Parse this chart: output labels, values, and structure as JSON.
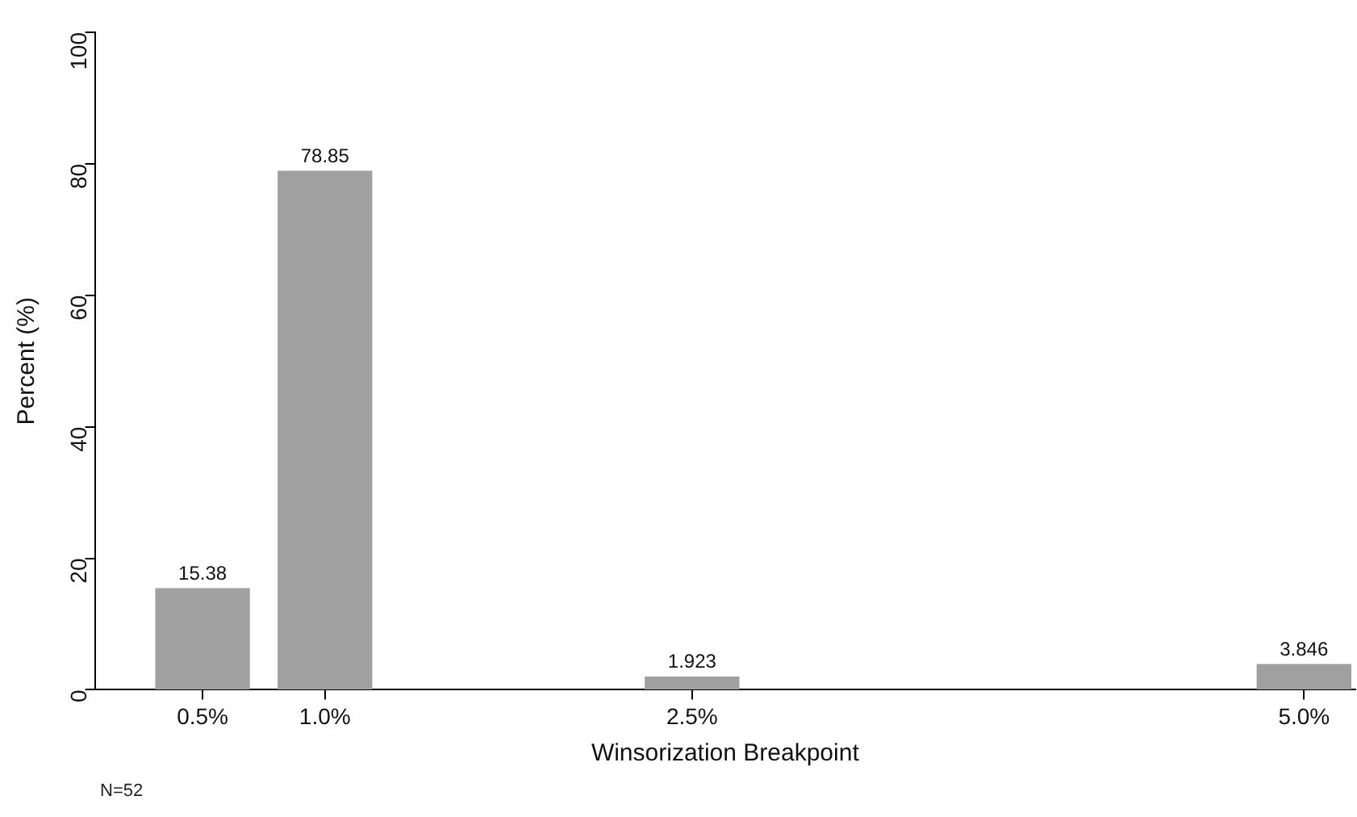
{
  "chart_data": {
    "type": "bar",
    "xlabel": "Winsorization Breakpoint",
    "ylabel": "Percent (%)",
    "x": [
      0.5,
      1.0,
      2.5,
      5.0
    ],
    "values": [
      15.38,
      78.85,
      1.923,
      3.846
    ],
    "color": "#a0a0a0",
    "data_labels": true,
    "xlim": [
      0.06,
      5.21
    ],
    "xticks": [
      {
        "value": 0.5,
        "label": "0.5%"
      },
      {
        "value": 1.0,
        "label": "1.0%"
      },
      {
        "value": 2.5,
        "label": "2.5%"
      },
      {
        "value": 5.0,
        "label": "5.0%"
      }
    ],
    "ylim": [
      0,
      100
    ],
    "yticks": [
      0,
      20,
      40,
      60,
      80,
      100
    ],
    "grid": false,
    "legend": false,
    "annotations": [
      "N=52"
    ]
  }
}
